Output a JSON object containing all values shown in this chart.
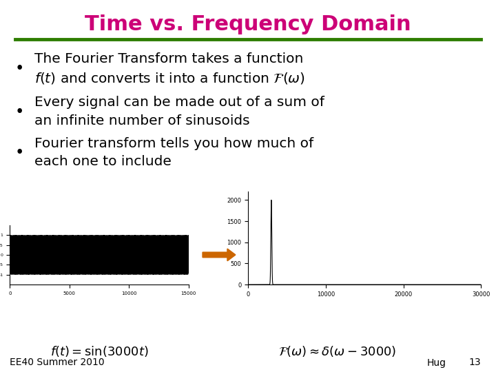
{
  "title": "Time vs. Frequency Domain",
  "title_color": "#CC0077",
  "title_fontsize": 22,
  "separator_color": "#2E7D00",
  "bg_color": "#FFFFFF",
  "bullet_points": [
    "The Fourier Transform takes a function\n$f(t)$ and converts it into a function $\\mathcal{F}(\\omega)$",
    "Every signal can be made out of a sum of\nan infinite number of sinusoids",
    "Fourier transform tells you how much of\neach one to include"
  ],
  "bullet_fontsize": 14.5,
  "footer_left": "EE40 Summer 2010",
  "footer_center_left": "$f(t) = \\sin(3000t)$",
  "footer_center_right": "$\\mathcal{F}(\\omega) \\approx \\delta(\\omega - 3000)$",
  "footer_right": "Hug",
  "footer_page": "13",
  "footer_fontsize": 10
}
